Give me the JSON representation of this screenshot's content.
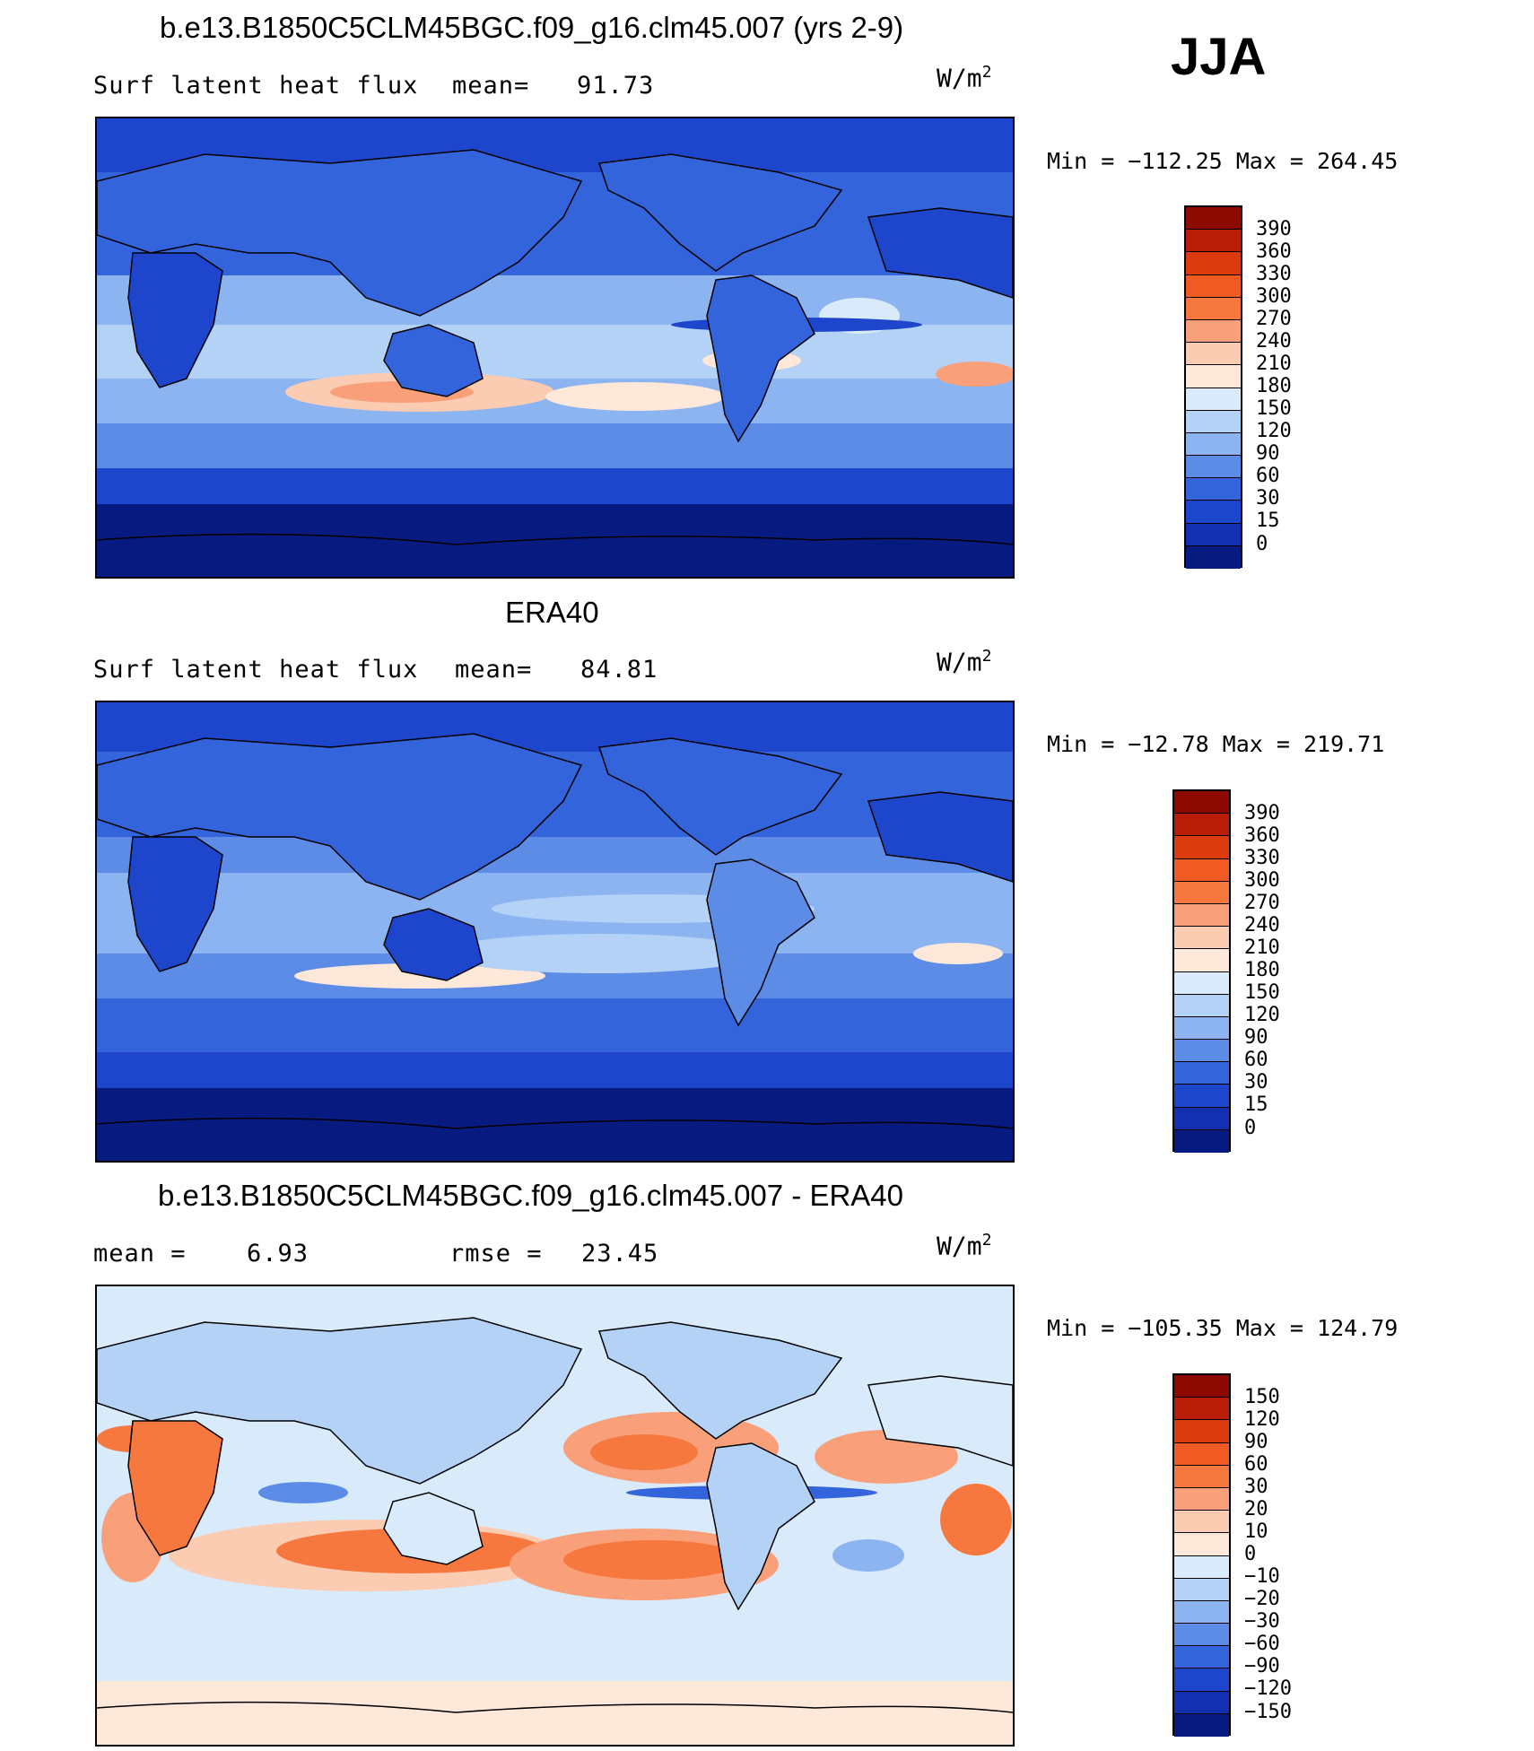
{
  "season": "JJA",
  "panels": [
    {
      "title": "b.e13.B1850C5CLM45BGC.f09_g16.clm45.007 (yrs 2-9)",
      "variable": "Surf latent heat flux",
      "stat_label": "mean=",
      "stat_value": "91.73",
      "units": "W/m",
      "units_exp": "2",
      "minmax": "Min = −112.25 Max = 264.45",
      "colorbar": {
        "labels": [
          "390",
          "360",
          "330",
          "300",
          "270",
          "240",
          "210",
          "180",
          "150",
          "120",
          "90",
          "60",
          "30",
          "15",
          "0"
        ],
        "colors": [
          "#8c0a00",
          "#b81e05",
          "#dc3a0f",
          "#f05a23",
          "#f6783e",
          "#f9a07a",
          "#fbcbb2",
          "#fde8da",
          "#d9ebfa",
          "#b4d2f6",
          "#8cb4f0",
          "#5c8ce6",
          "#3364dc",
          "#1e46cc",
          "#1230b0",
          "#061a80"
        ]
      }
    },
    {
      "title": "ERA40",
      "variable": "Surf latent heat flux",
      "stat_label": "mean=",
      "stat_value": "84.81",
      "units": "W/m",
      "units_exp": "2",
      "minmax": "Min = −12.78 Max = 219.71",
      "colorbar": {
        "labels": [
          "390",
          "360",
          "330",
          "300",
          "270",
          "240",
          "210",
          "180",
          "150",
          "120",
          "90",
          "60",
          "30",
          "15",
          "0"
        ],
        "colors": [
          "#8c0a00",
          "#b81e05",
          "#dc3a0f",
          "#f05a23",
          "#f6783e",
          "#f9a07a",
          "#fbcbb2",
          "#fde8da",
          "#d9ebfa",
          "#b4d2f6",
          "#8cb4f0",
          "#5c8ce6",
          "#3364dc",
          "#1e46cc",
          "#1230b0",
          "#061a80"
        ]
      }
    },
    {
      "title": "b.e13.B1850C5CLM45BGC.f09_g16.clm45.007 - ERA40",
      "stat_label": "mean =",
      "stat_value": "6.93",
      "stat2_label": "rmse =",
      "stat2_value": "23.45",
      "units": "W/m",
      "units_exp": "2",
      "minmax": "Min = −105.35 Max = 124.79",
      "colorbar": {
        "labels": [
          "150",
          "120",
          "90",
          "60",
          "30",
          "20",
          "10",
          "0",
          "−10",
          "−20",
          "−30",
          "−60",
          "−90",
          "−120",
          "−150"
        ],
        "colors": [
          "#8c0a00",
          "#b81e05",
          "#dc3a0f",
          "#f05a23",
          "#f6783e",
          "#f9a07a",
          "#fbcbb2",
          "#fde8da",
          "#d9ebfa",
          "#b4d2f6",
          "#8cb4f0",
          "#5c8ce6",
          "#3364dc",
          "#1e46cc",
          "#1230b0",
          "#061a80"
        ]
      }
    }
  ]
}
